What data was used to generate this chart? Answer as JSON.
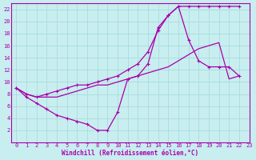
{
  "bg_color": "#c8eef0",
  "line_color": "#aa00aa",
  "grid_color": "#aadddd",
  "xlabel": "Windchill (Refroidissement éolien,°C)",
  "xlim": [
    -0.5,
    23
  ],
  "ylim": [
    0,
    23
  ],
  "xticks": [
    0,
    1,
    2,
    3,
    4,
    5,
    6,
    7,
    8,
    9,
    10,
    11,
    12,
    13,
    14,
    15,
    16,
    17,
    18,
    19,
    20,
    21,
    22,
    23
  ],
  "yticks": [
    2,
    4,
    6,
    8,
    10,
    12,
    14,
    16,
    18,
    20,
    22
  ],
  "line1_marked": {
    "x": [
      0,
      1,
      2,
      3,
      4,
      5,
      6,
      7,
      8,
      9,
      10,
      11,
      12,
      13,
      14,
      15,
      16,
      17,
      18,
      19,
      20,
      21,
      22
    ],
    "y": [
      9,
      7.5,
      6.5,
      5.5,
      4.5,
      4,
      3.5,
      3,
      2,
      2,
      5,
      10.5,
      11,
      13,
      19,
      21,
      22.5,
      22.5,
      22.5,
      22.5,
      22.5,
      22.5,
      22.5
    ]
  },
  "line2_plain": {
    "x": [
      0,
      1,
      2,
      3,
      4,
      5,
      6,
      7,
      8,
      9,
      10,
      11,
      12,
      13,
      14,
      15,
      16,
      17,
      18,
      19,
      20,
      21,
      22
    ],
    "y": [
      9,
      8.0,
      7.5,
      7.5,
      7.5,
      8,
      8.5,
      9,
      9.5,
      9.5,
      10,
      10.5,
      11,
      11.5,
      12,
      12.5,
      13.5,
      14.5,
      15.5,
      16,
      16.5,
      10.5,
      11
    ]
  },
  "line3_marked": {
    "x": [
      0,
      1,
      2,
      3,
      4,
      5,
      6,
      7,
      8,
      9,
      10,
      11,
      12,
      13,
      14,
      15,
      16,
      17,
      18,
      19,
      20,
      21,
      22
    ],
    "y": [
      9,
      8,
      7.5,
      8,
      8.5,
      9,
      9.5,
      9.5,
      10,
      10.5,
      11,
      12,
      13,
      15,
      18.5,
      21,
      22.5,
      17,
      13.5,
      12.5,
      12.5,
      12.5,
      11
    ]
  }
}
